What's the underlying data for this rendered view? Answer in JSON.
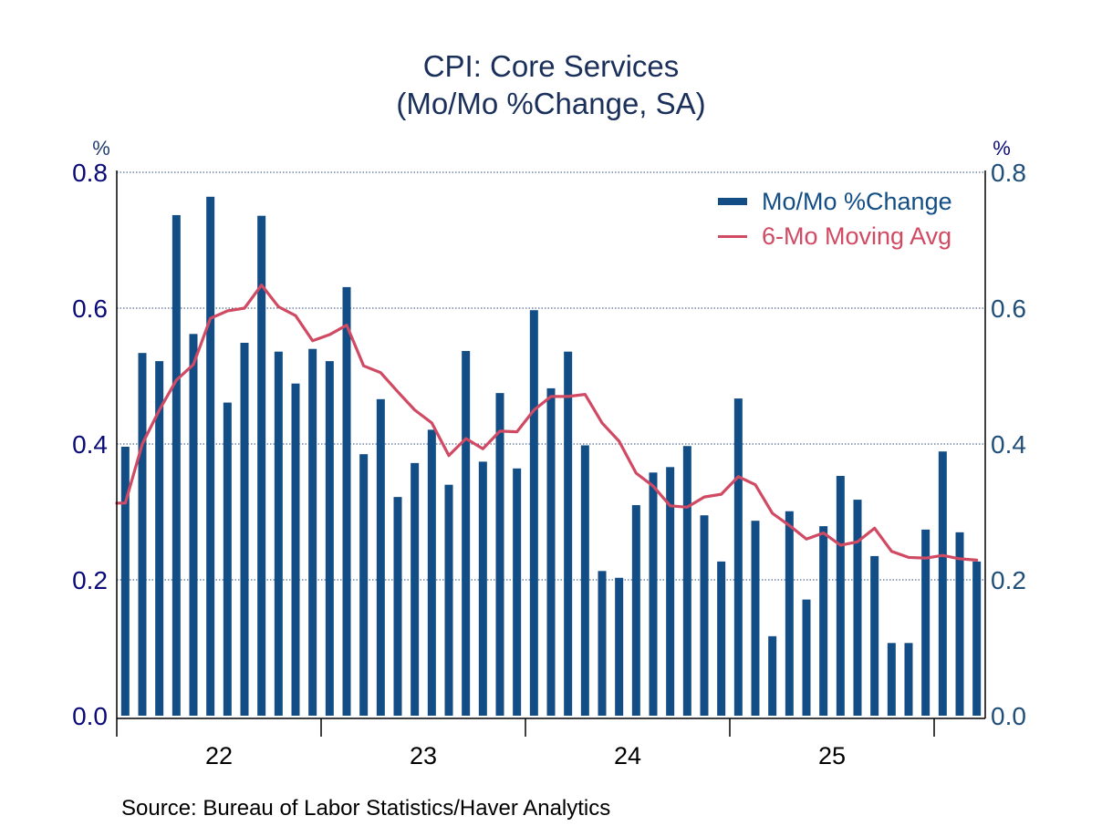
{
  "chart_data": {
    "type": "bar",
    "title": "CPI: Core Services",
    "subtitle": "(Mo/Mo %Change, SA)",
    "xlabel": "",
    "ylabel_left": "%",
    "ylabel_right": "%",
    "ylim": [
      0.0,
      0.8
    ],
    "yticks": [
      "0.0",
      "0.2",
      "0.4",
      "0.6",
      "0.8"
    ],
    "ytick_values": [
      0.0,
      0.2,
      0.4,
      0.6,
      0.8
    ],
    "grid": true,
    "x_year_labels": [
      "22",
      "23",
      "24",
      "25"
    ],
    "months_per_year": 12,
    "total_periods": 51,
    "legend_position": "top-right",
    "series": [
      {
        "name": "Mo/Mo %Change",
        "type": "bar",
        "color": "#124e85",
        "values": [
          0.396,
          0.534,
          0.522,
          0.737,
          0.562,
          0.764,
          0.461,
          0.549,
          0.736,
          0.536,
          0.489,
          0.54,
          0.522,
          0.631,
          0.385,
          0.466,
          0.322,
          0.372,
          0.421,
          0.34,
          0.537,
          0.374,
          0.475,
          0.364,
          0.597,
          0.482,
          0.536,
          0.398,
          0.213,
          0.203,
          0.31,
          0.358,
          0.366,
          0.397,
          0.295,
          0.227,
          0.467,
          0.287,
          0.117,
          0.301,
          0.171,
          0.279,
          0.353,
          0.318,
          0.235,
          0.107,
          0.107,
          0.274,
          0.389,
          0.27,
          0.227
        ]
      },
      {
        "name": "6-Mo Moving Avg",
        "type": "line",
        "color": "#d04a63",
        "values": [
          0.313,
          0.4,
          0.45,
          0.494,
          0.517,
          0.585,
          0.596,
          0.6,
          0.634,
          0.602,
          0.589,
          0.552,
          0.561,
          0.575,
          0.515,
          0.505,
          0.477,
          0.45,
          0.431,
          0.383,
          0.408,
          0.393,
          0.419,
          0.418,
          0.45,
          0.47,
          0.47,
          0.473,
          0.431,
          0.404,
          0.357,
          0.338,
          0.309,
          0.307,
          0.322,
          0.326,
          0.352,
          0.34,
          0.298,
          0.28,
          0.26,
          0.269,
          0.251,
          0.256,
          0.276,
          0.242,
          0.233,
          0.232,
          0.236,
          0.231,
          0.229
        ]
      }
    ],
    "source": "Source:  Bureau of Labor Statistics/Haver Analytics"
  },
  "colors": {
    "bar": "#124e85",
    "line": "#d04a63",
    "grid": "#2b4a7a",
    "axis": "#000000"
  }
}
